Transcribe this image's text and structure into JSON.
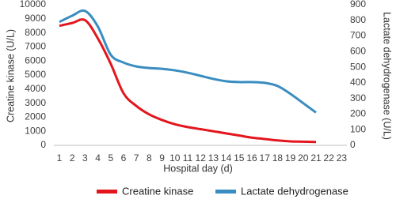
{
  "chart_data": {
    "type": "line",
    "x_label": "Hospital day (d)",
    "y_label": "Creatine kinase  (U/L)",
    "y2_label": "Lactate dehydrogenase (U/L)",
    "categories": [
      "1",
      "2",
      "3",
      "4",
      "5",
      "6",
      "7",
      "8",
      "9",
      "10",
      "11",
      "12",
      "13",
      "14",
      "15",
      "16",
      "17",
      "18",
      "19",
      "20",
      "21",
      "22",
      "23"
    ],
    "ylim": [
      0,
      10000
    ],
    "yticks": [
      0,
      1000,
      2000,
      3000,
      4000,
      5000,
      6000,
      7000,
      8000,
      9000,
      10000
    ],
    "y2lim": [
      0,
      900
    ],
    "y2ticks": [
      0,
      100,
      200,
      300,
      400,
      500,
      600,
      700,
      800,
      900
    ],
    "series": [
      {
        "name": "Creatine kinase",
        "color": "#e3161d",
        "values": [
          8500,
          8700,
          8900,
          7600,
          5800,
          3700,
          2800,
          2200,
          1800,
          1500,
          1300,
          1150,
          1000,
          850,
          700,
          550,
          450,
          350,
          280,
          260,
          240,
          null,
          null
        ]
      },
      {
        "name": "Lactate dehydrogenase",
        "color": "#3a8dc0",
        "axis": "y2",
        "values": [
          790,
          830,
          860,
          760,
          580,
          530,
          505,
          495,
          490,
          480,
          465,
          445,
          425,
          410,
          405,
          405,
          400,
          380,
          330,
          270,
          210,
          null,
          null
        ]
      }
    ]
  }
}
